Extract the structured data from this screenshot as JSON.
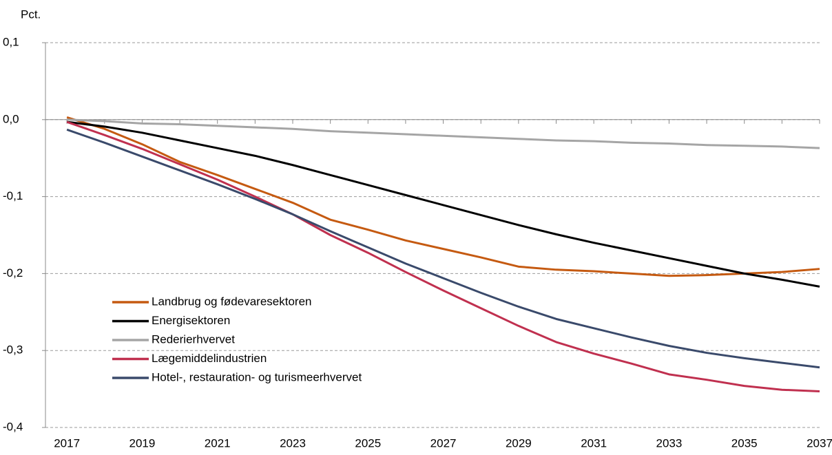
{
  "chart_data": {
    "type": "line",
    "y_label": "Pct.",
    "x": [
      2017,
      2018,
      2019,
      2020,
      2021,
      2022,
      2023,
      2024,
      2025,
      2026,
      2027,
      2028,
      2029,
      2030,
      2031,
      2032,
      2033,
      2034,
      2035,
      2036,
      2037
    ],
    "xlim": [
      2016.43,
      2037
    ],
    "xticks": [
      2017,
      2019,
      2021,
      2023,
      2025,
      2027,
      2029,
      2031,
      2033,
      2035,
      2037
    ],
    "ylim": [
      -0.4,
      0.1
    ],
    "yticks": [
      {
        "value": 0.1,
        "label": "0,1"
      },
      {
        "value": 0.0,
        "label": "0,0"
      },
      {
        "value": -0.1,
        "label": "-0,1"
      },
      {
        "value": -0.2,
        "label": "-0,2"
      },
      {
        "value": -0.3,
        "label": "-0,3"
      },
      {
        "value": -0.4,
        "label": "-0,4"
      }
    ],
    "grid": true,
    "legend": "lower left",
    "series": [
      {
        "name": "Landbrug og fødevaresektoren",
        "color": "#c55a11",
        "values": [
          0.003,
          -0.012,
          -0.032,
          -0.055,
          -0.072,
          -0.09,
          -0.108,
          -0.13,
          -0.143,
          -0.157,
          -0.168,
          -0.179,
          -0.191,
          -0.195,
          -0.197,
          -0.2,
          -0.203,
          -0.202,
          -0.2,
          -0.198,
          -0.194
        ]
      },
      {
        "name": "Energisektoren",
        "color": "#000000",
        "values": [
          -0.003,
          -0.009,
          -0.017,
          -0.027,
          -0.037,
          -0.047,
          -0.059,
          -0.072,
          -0.085,
          -0.098,
          -0.111,
          -0.124,
          -0.137,
          -0.149,
          -0.16,
          -0.17,
          -0.18,
          -0.19,
          -0.2,
          -0.208,
          -0.217
        ]
      },
      {
        "name": "Rederierhvervet",
        "color": "#a5a5a5",
        "values": [
          0,
          -0.002,
          -0.005,
          -0.006,
          -0.008,
          -0.01,
          -0.012,
          -0.015,
          -0.017,
          -0.019,
          -0.021,
          -0.023,
          -0.025,
          -0.027,
          -0.028,
          -0.03,
          -0.031,
          -0.033,
          -0.034,
          -0.035,
          -0.037
        ]
      },
      {
        "name": "Lægemiddelindustrien",
        "color": "#c0304f",
        "values": [
          -0.003,
          -0.02,
          -0.038,
          -0.058,
          -0.078,
          -0.1,
          -0.123,
          -0.15,
          -0.173,
          -0.198,
          -0.222,
          -0.245,
          -0.268,
          -0.289,
          -0.304,
          -0.317,
          -0.331,
          -0.338,
          -0.346,
          -0.351,
          -0.353
        ]
      },
      {
        "name": "Hotel-, restauration- og turismeerhvervet",
        "color": "#3a4a6b",
        "values": [
          -0.013,
          -0.03,
          -0.048,
          -0.066,
          -0.084,
          -0.103,
          -0.123,
          -0.145,
          -0.166,
          -0.187,
          -0.206,
          -0.225,
          -0.243,
          -0.259,
          -0.271,
          -0.283,
          -0.294,
          -0.303,
          -0.31,
          -0.316,
          -0.322
        ]
      }
    ]
  }
}
